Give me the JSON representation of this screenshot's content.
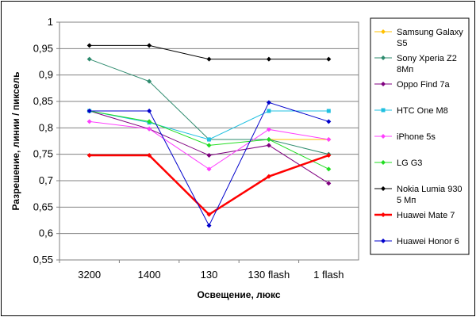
{
  "chart_data": {
    "type": "line",
    "title": "",
    "xlabel": "Освещение, люкс",
    "ylabel": "Разрешение, линии / пиксель",
    "categories": [
      "3200",
      "1400",
      "130",
      "130 flash",
      "1 flash"
    ],
    "ylim": [
      0.55,
      1
    ],
    "yticks": [
      "0,55",
      "0,6",
      "0,65",
      "0,7",
      "0,75",
      "0,8",
      "0,85",
      "0,9",
      "0,95",
      "1"
    ],
    "grid": "horizontal",
    "legend_position": "right",
    "series": [
      {
        "name_lines": [
          "Samsung Galaxy",
          "S5"
        ],
        "color": "#ffc000",
        "marker": "diamond",
        "width": 1,
        "values": [
          null,
          null,
          null,
          0.778,
          0.778
        ]
      },
      {
        "name_lines": [
          "Sony Xperia Z2",
          "8Мп"
        ],
        "color": "#2e8b6e",
        "marker": "diamond",
        "width": 1,
        "values": [
          0.93,
          0.888,
          0.778,
          0.778,
          0.75
        ]
      },
      {
        "name_lines": [
          "Oppo Find 7a"
        ],
        "color": "#800080",
        "marker": "diamond",
        "width": 1,
        "values": [
          0.832,
          0.798,
          0.748,
          0.767,
          0.695
        ]
      },
      {
        "name_lines": [
          "HTC One M8"
        ],
        "color": "#20c0e0",
        "marker": "square",
        "width": 1,
        "values": [
          0.832,
          0.81,
          0.778,
          0.832,
          0.832
        ]
      },
      {
        "name_lines": [
          "iPhone 5s"
        ],
        "color": "#ff40ff",
        "marker": "diamond",
        "width": 1,
        "values": [
          0.812,
          0.798,
          0.722,
          0.797,
          0.778
        ]
      },
      {
        "name_lines": [
          "LG G3"
        ],
        "color": "#22dd22",
        "marker": "diamond",
        "width": 1,
        "values": [
          0.832,
          0.812,
          0.767,
          0.778,
          0.722
        ]
      },
      {
        "name_lines": [
          "Nokia Lumia 930",
          "5 Мп"
        ],
        "color": "#000000",
        "marker": "diamond",
        "width": 1,
        "values": [
          0.956,
          0.956,
          0.93,
          0.93,
          0.93
        ]
      },
      {
        "name_lines": [
          "Huawei Mate 7"
        ],
        "color": "#ff0000",
        "marker": "diamond",
        "width": 2.5,
        "values": [
          0.748,
          0.748,
          0.636,
          0.708,
          0.748
        ]
      },
      {
        "name_lines": [
          "Huawei Honor 6"
        ],
        "color": "#0000cc",
        "marker": "diamond",
        "width": 1,
        "values": [
          0.832,
          0.832,
          0.615,
          0.848,
          0.812
        ]
      }
    ]
  }
}
